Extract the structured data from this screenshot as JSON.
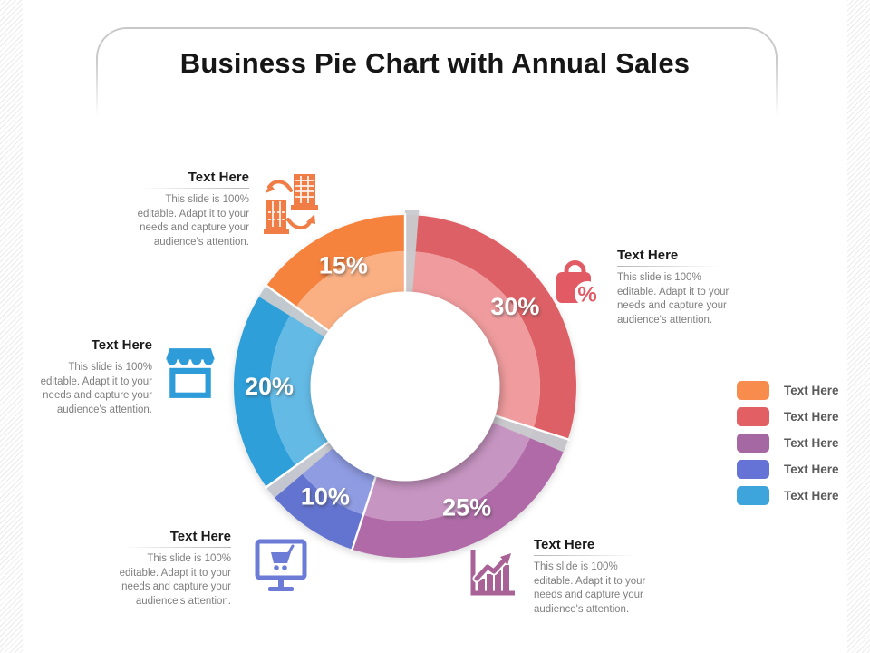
{
  "slide": {
    "title": "Business Pie Chart with Annual Sales"
  },
  "chart_data": {
    "type": "pie",
    "subtype": "donut",
    "title": "Business Pie Chart with Annual Sales",
    "start_angle_deg": 0,
    "direction": "clockwise",
    "unit": "%",
    "categories": [
      "Text Here",
      "Text Here",
      "Text Here",
      "Text Here",
      "Text Here"
    ],
    "values": [
      30,
      25,
      10,
      20,
      15
    ],
    "segments": [
      {
        "label": "30%",
        "value": 30,
        "outer_color": "#DD6066",
        "inner_color": "#F09C9E"
      },
      {
        "label": "25%",
        "value": 25,
        "outer_color": "#AF6BA7",
        "inner_color": "#C795C2"
      },
      {
        "label": "10%",
        "value": 10,
        "outer_color": "#6373D0",
        "inner_color": "#8F9CE2"
      },
      {
        "label": "20%",
        "value": 20,
        "outer_color": "#2E9FD9",
        "inner_color": "#63BAE5"
      },
      {
        "label": "15%",
        "value": 15,
        "outer_color": "#F5823E",
        "inner_color": "#FBB083"
      }
    ],
    "legend_position": "right",
    "legend_labels": [
      "Text Here",
      "Text Here",
      "Text Here",
      "Text Here",
      "Text Here"
    ]
  },
  "callouts": [
    {
      "heading": "Text Here",
      "body_lines": [
        "This slide is 100%",
        "editable. Adapt it to your",
        "needs and capture your",
        "audience's attention."
      ],
      "icon": "buildings-transfer-icon",
      "icon_color": "#EF7D45"
    },
    {
      "heading": "Text Here",
      "body_lines": [
        "This slide is 100%",
        "editable. Adapt it to your",
        "needs and capture your",
        "audience's attention."
      ],
      "icon": "discount-bag-icon",
      "icon_color": "#E25A63"
    },
    {
      "heading": "Text Here",
      "body_lines": [
        "This slide is 100%",
        "editable. Adapt it to your",
        "needs and capture your",
        "audience's attention."
      ],
      "icon": "storefront-icon",
      "icon_color": "#2E9CD8"
    },
    {
      "heading": "Text Here",
      "body_lines": [
        "This slide is 100%",
        "editable. Adapt it to your",
        "needs and capture your",
        "audience's attention."
      ],
      "icon": "ecommerce-monitor-icon",
      "icon_color": "#6B7BD6"
    },
    {
      "heading": "Text Here",
      "body_lines": [
        "This slide is 100%",
        "editable. Adapt it to your",
        "needs and capture your",
        "audience's attention."
      ],
      "icon": "growth-chart-icon",
      "icon_color": "#A96295"
    }
  ],
  "legend": {
    "items": [
      {
        "label": "Text Here",
        "color": "#F78C4D"
      },
      {
        "label": "Text Here",
        "color": "#E26064"
      },
      {
        "label": "Text Here",
        "color": "#A668A3"
      },
      {
        "label": "Text Here",
        "color": "#6572D6"
      },
      {
        "label": "Text Here",
        "color": "#3EA4DC"
      }
    ]
  }
}
